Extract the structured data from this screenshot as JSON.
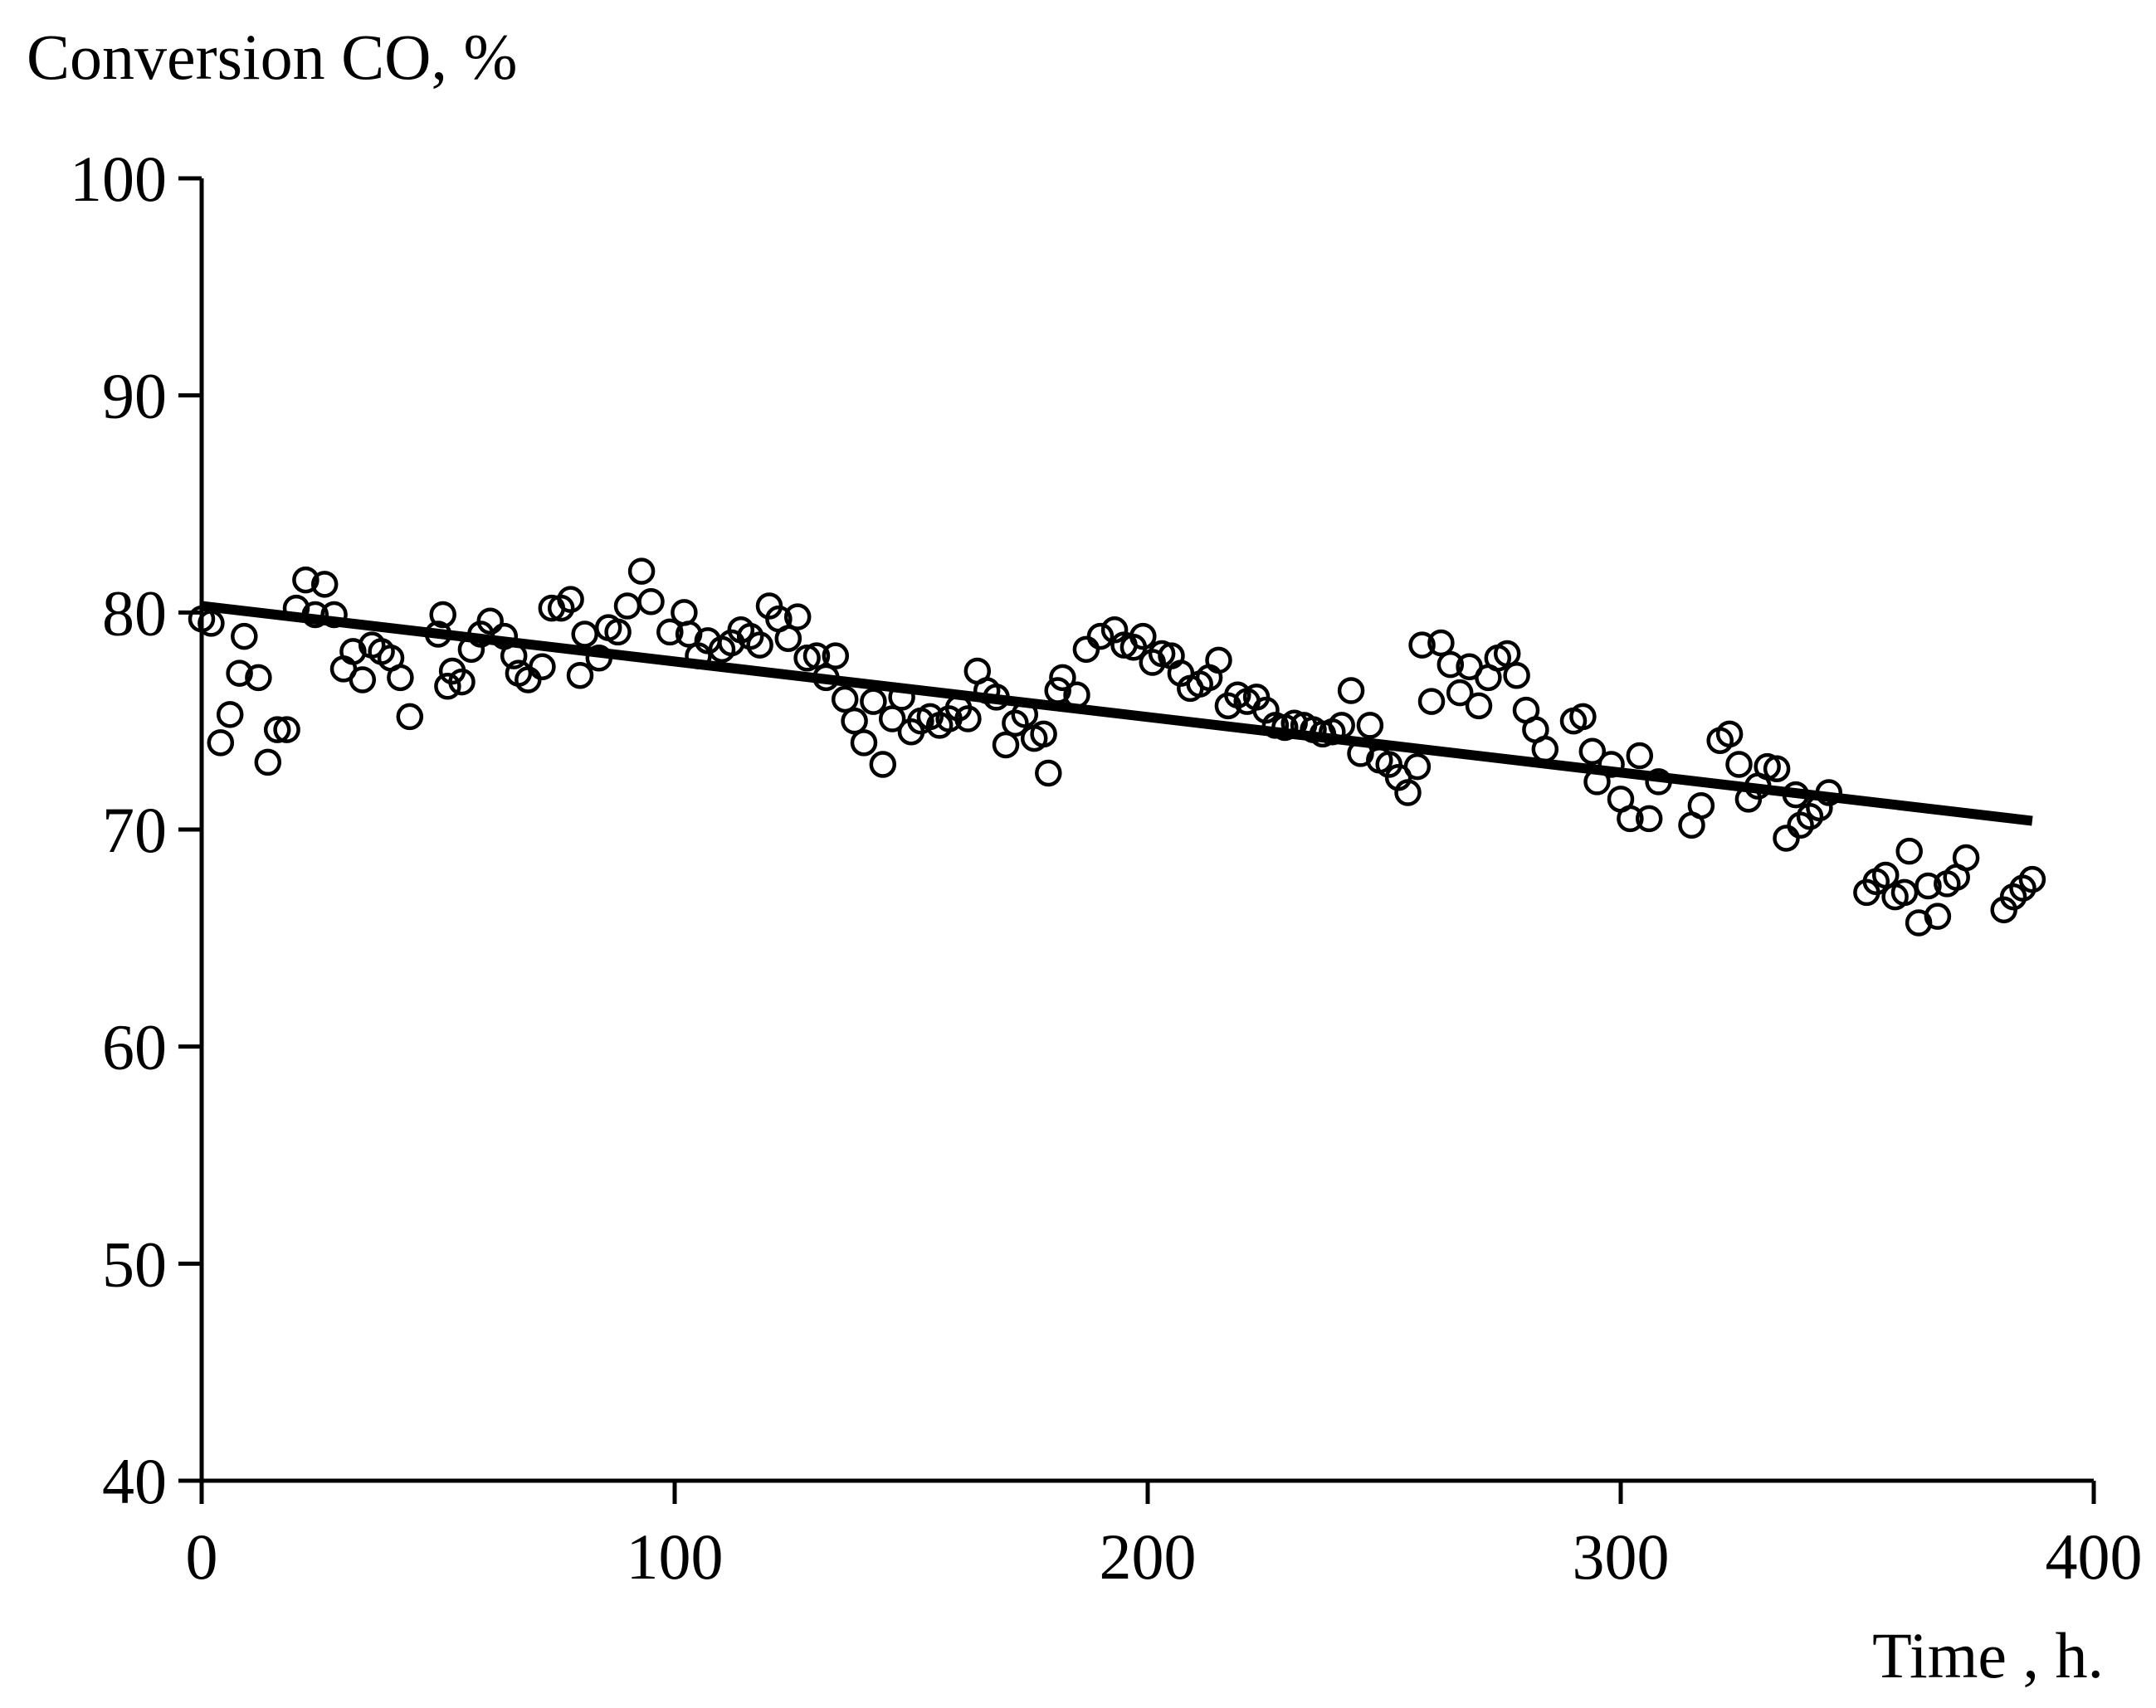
{
  "chart_data": {
    "type": "scatter",
    "ylabel": "Conversion  CO, %",
    "xlabel": "Time , h.",
    "xlim": [
      0,
      400
    ],
    "ylim": [
      40,
      100
    ],
    "xticks": [
      0,
      100,
      200,
      300,
      400
    ],
    "yticks": [
      40,
      50,
      60,
      70,
      80,
      90,
      100
    ],
    "series": [
      {
        "name": "Conversion CO",
        "marker": "open-circle",
        "points": [
          [
            0,
            79.7
          ],
          [
            2,
            79.5
          ],
          [
            4,
            74.0
          ],
          [
            6,
            75.3
          ],
          [
            8,
            77.2
          ],
          [
            9,
            78.9
          ],
          [
            12,
            77.0
          ],
          [
            14,
            73.1
          ],
          [
            16,
            74.6
          ],
          [
            18,
            74.6
          ],
          [
            20,
            80.2
          ],
          [
            22,
            81.5
          ],
          [
            24,
            79.9
          ],
          [
            26,
            81.3
          ],
          [
            28,
            79.9
          ],
          [
            30,
            77.4
          ],
          [
            32,
            78.2
          ],
          [
            34,
            76.9
          ],
          [
            36,
            78.5
          ],
          [
            38,
            78.2
          ],
          [
            40,
            77.9
          ],
          [
            42,
            77.0
          ],
          [
            44,
            75.2
          ],
          [
            50,
            79.0
          ],
          [
            51,
            79.9
          ],
          [
            52,
            76.6
          ],
          [
            53,
            77.3
          ],
          [
            55,
            76.8
          ],
          [
            57,
            78.3
          ],
          [
            59,
            79.0
          ],
          [
            61,
            79.6
          ],
          [
            64,
            78.9
          ],
          [
            66,
            78.0
          ],
          [
            67,
            77.2
          ],
          [
            69,
            76.9
          ],
          [
            72,
            77.5
          ],
          [
            74,
            80.2
          ],
          [
            76,
            80.2
          ],
          [
            78,
            80.6
          ],
          [
            80,
            77.1
          ],
          [
            81,
            79.0
          ],
          [
            84,
            77.9
          ],
          [
            86,
            79.3
          ],
          [
            88,
            79.1
          ],
          [
            90,
            80.3
          ],
          [
            93,
            81.9
          ],
          [
            95,
            80.5
          ],
          [
            99,
            79.1
          ],
          [
            102,
            80.0
          ],
          [
            103,
            79.0
          ],
          [
            105,
            78.0
          ],
          [
            107,
            78.7
          ],
          [
            110,
            78.3
          ],
          [
            112,
            78.6
          ],
          [
            114,
            79.2
          ],
          [
            116,
            78.9
          ],
          [
            118,
            78.5
          ],
          [
            120,
            80.3
          ],
          [
            122,
            79.7
          ],
          [
            124,
            78.8
          ],
          [
            126,
            79.8
          ],
          [
            128,
            77.9
          ],
          [
            130,
            78.0
          ],
          [
            132,
            77.0
          ],
          [
            134,
            78.0
          ],
          [
            136,
            76.0
          ],
          [
            138,
            75.0
          ],
          [
            140,
            74.0
          ],
          [
            142,
            75.9
          ],
          [
            144,
            73.0
          ],
          [
            146,
            75.1
          ],
          [
            148,
            76.1
          ],
          [
            150,
            74.5
          ],
          [
            152,
            75.0
          ],
          [
            154,
            75.2
          ],
          [
            156,
            74.8
          ],
          [
            158,
            75.1
          ],
          [
            160,
            75.6
          ],
          [
            162,
            75.1
          ],
          [
            164,
            77.3
          ],
          [
            166,
            76.4
          ],
          [
            168,
            76.1
          ],
          [
            170,
            73.9
          ],
          [
            172,
            74.9
          ],
          [
            174,
            75.3
          ],
          [
            176,
            74.2
          ],
          [
            178,
            74.4
          ],
          [
            179,
            72.6
          ],
          [
            181,
            76.4
          ],
          [
            182,
            77.0
          ],
          [
            185,
            76.2
          ],
          [
            187,
            78.3
          ],
          [
            190,
            78.9
          ],
          [
            193,
            79.2
          ],
          [
            195,
            78.5
          ],
          [
            197,
            78.4
          ],
          [
            199,
            78.9
          ],
          [
            201,
            77.7
          ],
          [
            203,
            78.1
          ],
          [
            205,
            78.0
          ],
          [
            207,
            77.2
          ],
          [
            209,
            76.5
          ],
          [
            211,
            76.7
          ],
          [
            213,
            77.0
          ],
          [
            215,
            77.8
          ],
          [
            217,
            75.7
          ],
          [
            219,
            76.2
          ],
          [
            221,
            75.9
          ],
          [
            223,
            76.1
          ],
          [
            225,
            75.5
          ],
          [
            227,
            74.8
          ],
          [
            229,
            74.7
          ],
          [
            231,
            74.9
          ],
          [
            233,
            74.8
          ],
          [
            235,
            74.6
          ],
          [
            237,
            74.4
          ],
          [
            239,
            74.5
          ],
          [
            241,
            74.8
          ],
          [
            243,
            76.4
          ],
          [
            245,
            73.5
          ],
          [
            247,
            74.8
          ],
          [
            249,
            73.2
          ],
          [
            251,
            73.0
          ],
          [
            253,
            72.4
          ],
          [
            255,
            71.7
          ],
          [
            257,
            72.9
          ],
          [
            258,
            78.5
          ],
          [
            260,
            75.9
          ],
          [
            262,
            78.6
          ],
          [
            264,
            77.6
          ],
          [
            266,
            76.3
          ],
          [
            268,
            77.5
          ],
          [
            270,
            75.7
          ],
          [
            272,
            77.0
          ],
          [
            274,
            77.9
          ],
          [
            276,
            78.1
          ],
          [
            278,
            77.1
          ],
          [
            280,
            75.5
          ],
          [
            282,
            74.6
          ],
          [
            284,
            73.7
          ],
          [
            290,
            75.0
          ],
          [
            292,
            75.2
          ],
          [
            294,
            73.6
          ],
          [
            295,
            72.2
          ],
          [
            298,
            73.0
          ],
          [
            300,
            71.4
          ],
          [
            302,
            70.5
          ],
          [
            304,
            73.4
          ],
          [
            306,
            70.5
          ],
          [
            308,
            72.2
          ],
          [
            315,
            70.2
          ],
          [
            317,
            71.1
          ],
          [
            321,
            74.1
          ],
          [
            323,
            74.4
          ],
          [
            325,
            73.0
          ],
          [
            327,
            71.4
          ],
          [
            329,
            72.0
          ],
          [
            331,
            72.9
          ],
          [
            333,
            72.8
          ],
          [
            335,
            69.6
          ],
          [
            337,
            71.6
          ],
          [
            338,
            70.2
          ],
          [
            340,
            70.6
          ],
          [
            342,
            71.0
          ],
          [
            344,
            71.7
          ],
          [
            352,
            67.1
          ],
          [
            354,
            67.6
          ],
          [
            356,
            67.9
          ],
          [
            358,
            66.9
          ],
          [
            360,
            67.1
          ],
          [
            361,
            69.0
          ],
          [
            363,
            65.7
          ],
          [
            365,
            67.4
          ],
          [
            367,
            66.0
          ],
          [
            369,
            67.5
          ],
          [
            371,
            67.8
          ],
          [
            373,
            68.7
          ],
          [
            381,
            66.3
          ],
          [
            383,
            66.9
          ],
          [
            385,
            67.3
          ],
          [
            387,
            67.7
          ]
        ]
      }
    ],
    "trendline": {
      "type": "linear",
      "points": [
        [
          0,
          80.3
        ],
        [
          387,
          70.4
        ]
      ]
    }
  }
}
